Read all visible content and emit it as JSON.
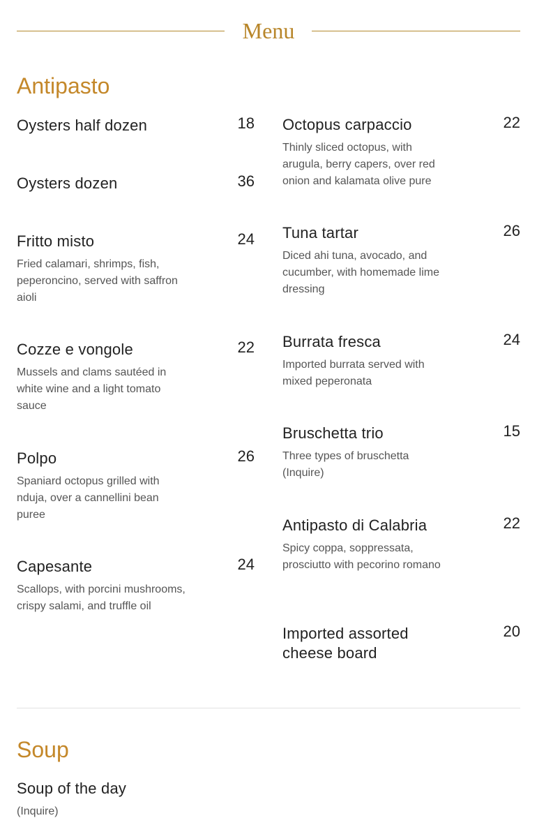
{
  "header": {
    "title": "Menu",
    "accent_color": "#b8862a"
  },
  "sections": [
    {
      "title": "Antipasto",
      "left_items": [
        {
          "name": "Oysters half dozen",
          "price": "18",
          "description": ""
        },
        {
          "name": "Oysters dozen",
          "price": "36",
          "description": ""
        },
        {
          "name": "Fritto misto",
          "price": "24",
          "description": "Fried calamari, shrimps, fish, peperoncino, served with saffron aioli"
        },
        {
          "name": "Cozze e vongole",
          "price": "22",
          "description": "Mussels and clams sautéed in white wine and a light tomato sauce"
        },
        {
          "name": "Polpo",
          "price": "26",
          "description": "Spaniard octopus grilled with nduja, over a cannellini bean puree"
        },
        {
          "name": "Capesante",
          "price": "24",
          "description": "Scallops, with porcini mushrooms, crispy salami, and truffle oil"
        }
      ],
      "right_items": [
        {
          "name": "Octopus carpaccio",
          "price": "22",
          "description": "Thinly sliced octopus, with arugula, berry capers, over red onion and kalamata olive pure"
        },
        {
          "name": "Tuna tartar",
          "price": "26",
          "description": "Diced ahi tuna, avocado, and cucumber, with homemade lime dressing"
        },
        {
          "name": "Burrata fresca",
          "price": "24",
          "description": "Imported burrata served with mixed peperonata"
        },
        {
          "name": "Bruschetta trio",
          "price": "15",
          "description": "Three types of bruschetta (Inquire)"
        },
        {
          "name": "Antipasto di Calabria",
          "price": "22",
          "description": "Spicy coppa, soppressata, prosciutto with pecorino romano"
        },
        {
          "name": "Imported assorted cheese board",
          "price": "20",
          "description": ""
        }
      ]
    },
    {
      "title": "Soup",
      "left_items": [
        {
          "name": "Soup of the day",
          "price": "",
          "description": "(Inquire)"
        }
      ]
    }
  ]
}
